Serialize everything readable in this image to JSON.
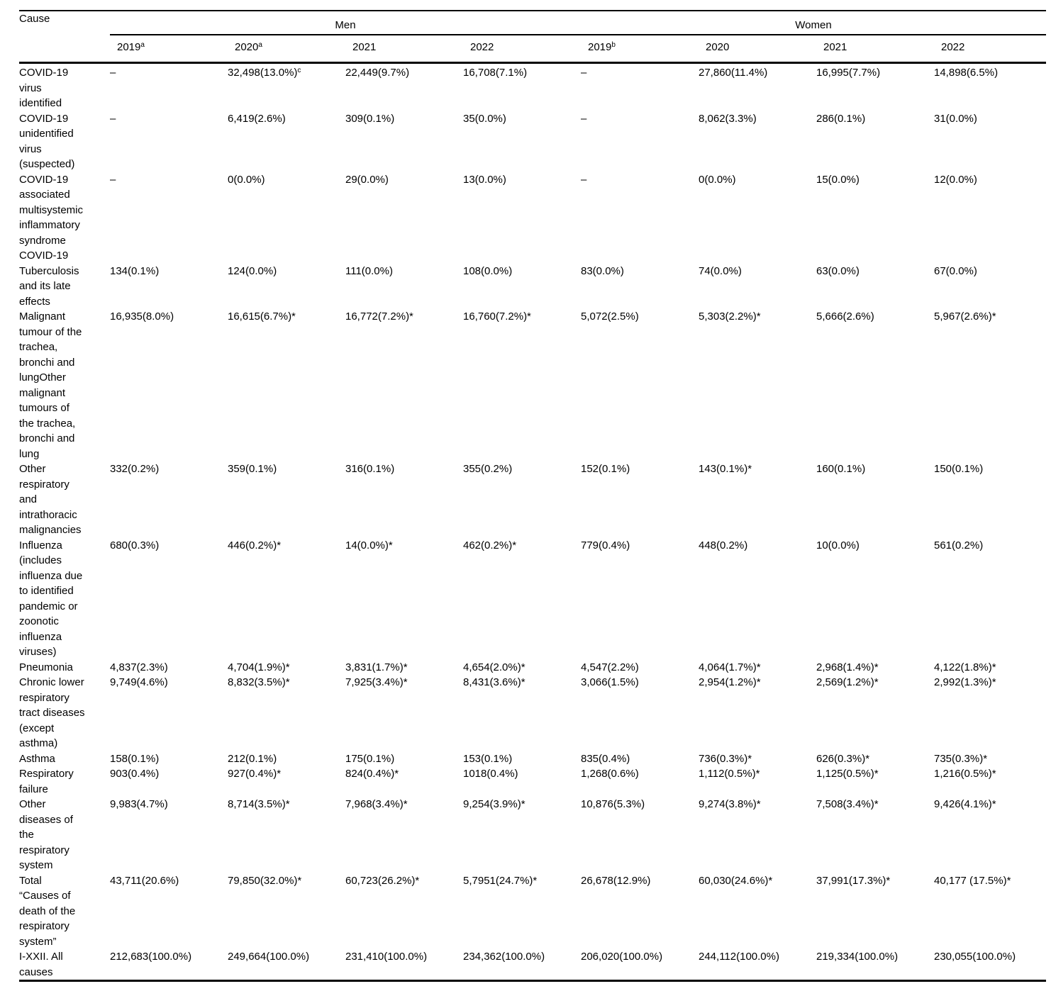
{
  "table": {
    "cause_header": "Cause",
    "groups": [
      {
        "label": "Men",
        "years": [
          "2019^a",
          "2020^a",
          "2021",
          "2022"
        ]
      },
      {
        "label": "Women",
        "years": [
          "2019^b",
          "2020",
          "2021",
          "2022"
        ]
      }
    ],
    "rows": [
      {
        "cause": "COVID-19 virus identified",
        "cause_lines": [
          "COVID-19",
          "virus",
          "identified"
        ],
        "values": [
          "–",
          "32,498(13.0%)^c",
          "22,449(9.7%)",
          "16,708(7.1%)",
          "–",
          "27,860(11.4%)",
          "16,995(7.7%)",
          "14,898(6.5%)"
        ]
      },
      {
        "cause": "COVID-19 unidentified virus (suspected)",
        "cause_lines": [
          "COVID-19",
          "unidentified",
          "virus",
          "(suspected)"
        ],
        "values": [
          "–",
          "6,419(2.6%)",
          "309(0.1%)",
          "35(0.0%)",
          "–",
          "8,062(3.3%)",
          "286(0.1%)",
          "31(0.0%)"
        ]
      },
      {
        "cause": "COVID-19 associated multisystemic inflammatory syndrome COVID-19",
        "cause_lines": [
          "COVID-19",
          "associated",
          "multisystemic",
          "inflammatory",
          "syndrome",
          "COVID-19"
        ],
        "values": [
          "–",
          "0(0.0%)",
          "29(0.0%)",
          "13(0.0%)",
          "–",
          "0(0.0%)",
          "15(0.0%)",
          "12(0.0%)"
        ]
      },
      {
        "cause": "Tuberculosis and its late effects",
        "cause_lines": [
          "Tuberculosis",
          "and its late",
          "effects"
        ],
        "values": [
          "134(0.1%)",
          "124(0.0%)",
          "111(0.0%)",
          "108(0.0%)",
          "83(0.0%)",
          "74(0.0%)",
          "63(0.0%)",
          "67(0.0%)"
        ]
      },
      {
        "cause": "Malignant tumour of the trachea, bronchi and lungOther malignant tumours of the trachea, bronchi and lung",
        "cause_lines": [
          "Malignant",
          "tumour of the",
          "trachea,",
          "bronchi and",
          "lungOther",
          "malignant",
          "tumours of",
          "the trachea,",
          "bronchi and",
          "lung"
        ],
        "values": [
          "16,935(8.0%)",
          "16,615(6.7%)*",
          "16,772(7.2%)*",
          "16,760(7.2%)*",
          "5,072(2.5%)",
          "5,303(2.2%)*",
          "5,666(2.6%)",
          "5,967(2.6%)*"
        ]
      },
      {
        "cause": "Other respiratory and intrathoracic malignancies",
        "cause_lines": [
          "Other",
          "respiratory",
          "and",
          "intrathoracic",
          "malignancies"
        ],
        "values": [
          "332(0.2%)",
          "359(0.1%)",
          "316(0.1%)",
          "355(0.2%)",
          "152(0.1%)",
          "143(0.1%)*",
          "160(0.1%)",
          "150(0.1%)"
        ]
      },
      {
        "cause": "Influenza (includes influenza due to identified pandemic or zoonotic influenza viruses)",
        "cause_lines": [
          "Influenza",
          "(includes",
          "influenza due",
          "to identified",
          "pandemic or",
          "zoonotic",
          "influenza",
          "viruses)"
        ],
        "values": [
          "680(0.3%)",
          "446(0.2%)*",
          "14(0.0%)*",
          "462(0.2%)*",
          "779(0.4%)",
          "448(0.2%)",
          "10(0.0%)",
          "561(0.2%)"
        ]
      },
      {
        "cause": "Pneumonia",
        "cause_lines": [
          "Pneumonia"
        ],
        "values": [
          "4,837(2.3%)",
          "4,704(1.9%)*",
          "3,831(1.7%)*",
          "4,654(2.0%)*",
          "4,547(2.2%)",
          "4,064(1.7%)*",
          "2,968(1.4%)*",
          "4,122(1.8%)*"
        ]
      },
      {
        "cause": "Chronic lower respiratory tract diseases (except asthma)",
        "cause_lines": [
          "Chronic lower",
          "respiratory",
          "tract diseases",
          "(except",
          "asthma)"
        ],
        "values": [
          "9,749(4.6%)",
          "8,832(3.5%)*",
          "7,925(3.4%)*",
          "8,431(3.6%)*",
          "3,066(1.5%)",
          "2,954(1.2%)*",
          "2,569(1.2%)*",
          "2,992(1.3%)*"
        ]
      },
      {
        "cause": "Asthma",
        "cause_lines": [
          "Asthma"
        ],
        "values": [
          "158(0.1%)",
          "212(0.1%)",
          "175(0.1%)",
          "153(0.1%)",
          "835(0.4%)",
          "736(0.3%)*",
          "626(0.3%)*",
          "735(0.3%)*"
        ]
      },
      {
        "cause": "Respiratory failure",
        "cause_lines": [
          "Respiratory",
          "failure"
        ],
        "values": [
          "903(0.4%)",
          "927(0.4%)*",
          "824(0.4%)*",
          "1018(0.4%)",
          "1,268(0.6%)",
          "1,112(0.5%)*",
          "1,125(0.5%)*",
          "1,216(0.5%)*"
        ]
      },
      {
        "cause": "Other diseases of the respiratory system",
        "cause_lines": [
          "Other",
          "diseases of",
          "the",
          "respiratory",
          "system"
        ],
        "values": [
          "9,983(4.7%)",
          "8,714(3.5%)*",
          "7,968(3.4%)*",
          "9,254(3.9%)*",
          "10,876(5.3%)",
          "9,274(3.8%)*",
          "7,508(3.4%)*",
          "9,426(4.1%)*"
        ]
      },
      {
        "cause": "Total “Causes of death of the respiratory system”",
        "cause_lines": [
          "Total",
          "“Causes of",
          "death of the",
          "respiratory",
          "system”"
        ],
        "values": [
          "43,711(20.6%)",
          "79,850(32.0%)*",
          "60,723(26.2%)*",
          "5,7951(24.7%)*",
          "26,678(12.9%)",
          "60,030(24.6%)*",
          "37,991(17.3%)*",
          "40,177 (17.5%)*"
        ]
      },
      {
        "cause": "I-XXII. All causes",
        "cause_lines": [
          "I-XXII. All",
          "causes"
        ],
        "values": [
          "212,683(100.0%)",
          "249,664(100.0%)",
          "231,410(100.0%)",
          "234,362(100.0%)",
          "206,020(100.0%)",
          "244,112(100.0%)",
          "219,334(100.0%)",
          "230,055(100.0%)"
        ]
      }
    ]
  }
}
